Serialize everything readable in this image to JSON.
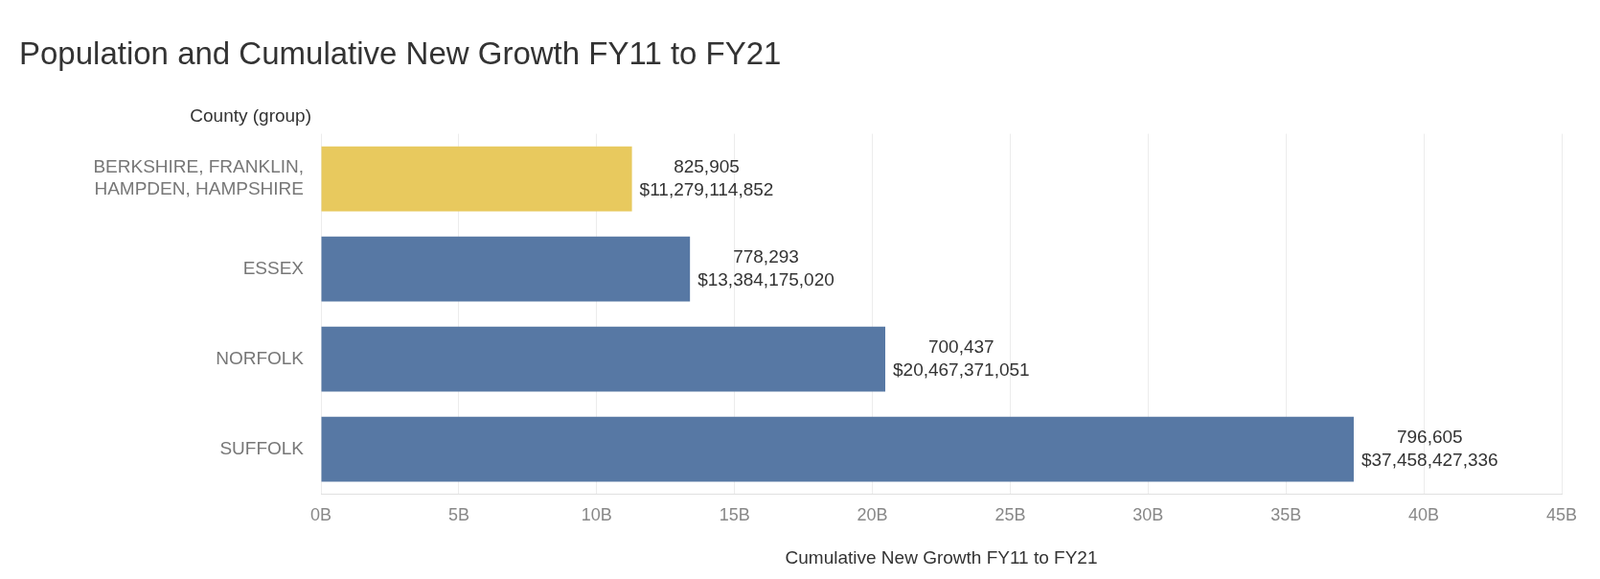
{
  "chart_data": {
    "type": "bar",
    "title": "Population and Cumulative New Growth FY11 to FY21",
    "xlabel": "Cumulative New Growth FY11 to FY21",
    "ylabel": "County (group)",
    "orientation": "horizontal",
    "categories": [
      "BERKSHIRE, FRANKLIN, HAMPDEN, HAMPSHIRE",
      "ESSEX",
      "NORFOLK",
      "SUFFOLK"
    ],
    "values": [
      11279114852,
      13384175020,
      20467371051,
      37458427336
    ],
    "value_labels": [
      "$11,279,114,852",
      "$13,384,175,020",
      "$20,467,371,051",
      "$37,458,427,336"
    ],
    "population": [
      825905,
      778293,
      700437,
      796605
    ],
    "population_labels": [
      "825,905",
      "778,293",
      "700,437",
      "796,605"
    ],
    "colors": [
      "#e8c95e",
      "#5778a4",
      "#5778a4",
      "#5778a4"
    ],
    "xlim": [
      0,
      45000000000
    ],
    "xticks": [
      {
        "value": 0,
        "label": "0B"
      },
      {
        "value": 5000000000,
        "label": "5B"
      },
      {
        "value": 10000000000,
        "label": "10B"
      },
      {
        "value": 15000000000,
        "label": "15B"
      },
      {
        "value": 20000000000,
        "label": "20B"
      },
      {
        "value": 25000000000,
        "label": "25B"
      },
      {
        "value": 30000000000,
        "label": "30B"
      },
      {
        "value": 35000000000,
        "label": "35B"
      },
      {
        "value": 40000000000,
        "label": "40B"
      },
      {
        "value": 45000000000,
        "label": "45B"
      }
    ],
    "grid": true,
    "data_labels": true
  }
}
